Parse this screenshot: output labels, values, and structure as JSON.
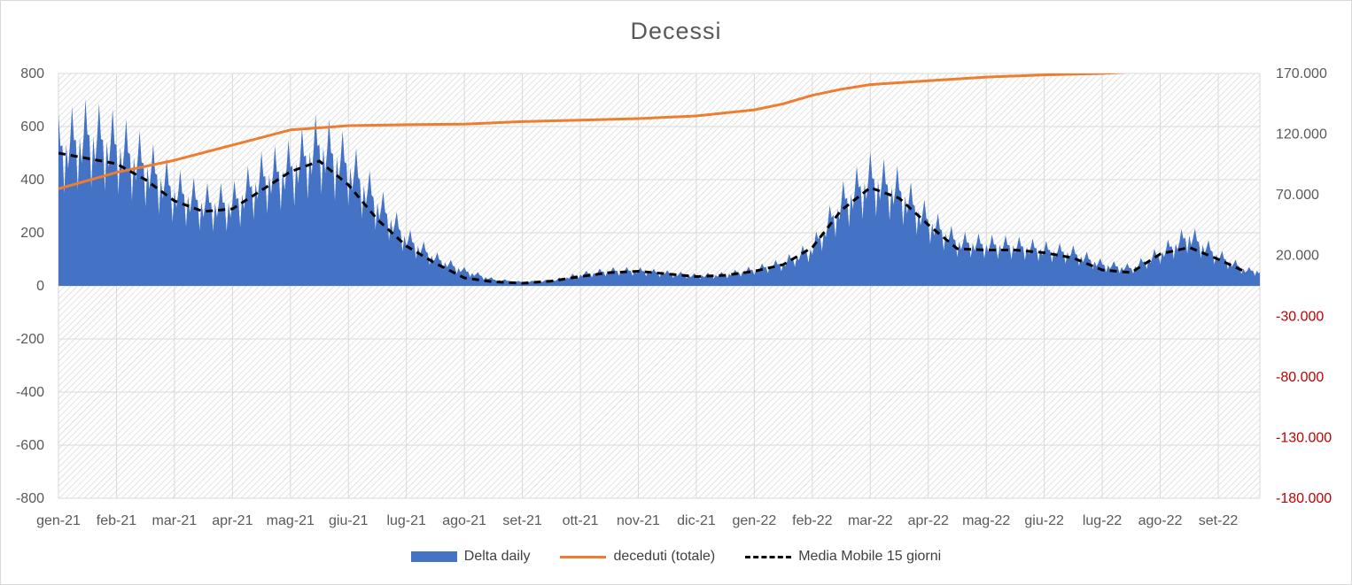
{
  "chart_data": {
    "type": "area",
    "title": "Decessi",
    "categories": [
      "gen-21",
      "feb-21",
      "mar-21",
      "apr-21",
      "mag-21",
      "giu-21",
      "lug-21",
      "ago-21",
      "set-21",
      "ott-21",
      "nov-21",
      "dic-21",
      "gen-22",
      "feb-22",
      "mar-22",
      "apr-22",
      "mag-22",
      "giu-22",
      "lug-22",
      "ago-22",
      "set-22"
    ],
    "ylim": [
      -800,
      800
    ],
    "y_ticks": [
      800,
      600,
      400,
      200,
      0,
      -200,
      -400,
      -600,
      -800
    ],
    "y2lim": [
      -180000,
      170000
    ],
    "y2_tick_labels": [
      "170.000",
      "120.000",
      "70.000",
      "20.000",
      "-30.000",
      "-80.000",
      "-130.000",
      "-180.000"
    ],
    "y2_tick_values": [
      170000,
      120000,
      70000,
      20000,
      -30000,
      -80000,
      -130000,
      -180000
    ],
    "grid": true,
    "legend_position": "bottom",
    "series": [
      {
        "name": "Delta daily",
        "type": "area",
        "axis": "left",
        "color": "#4472c4",
        "x": [
          0,
          0.5,
          1,
          1.5,
          2,
          2.5,
          3,
          3.5,
          4,
          4.5,
          5,
          5.5,
          6,
          6.5,
          7,
          7.5,
          8,
          8.5,
          9,
          9.5,
          10,
          10.5,
          11,
          11.5,
          12,
          12.5,
          13,
          13.5,
          14,
          14.5,
          15,
          15.5,
          16,
          16.5,
          17,
          17.5,
          18,
          18.5,
          19,
          19.5,
          20,
          20.5
        ],
        "values": [
          550,
          600,
          560,
          480,
          380,
          330,
          330,
          430,
          470,
          560,
          480,
          330,
          190,
          110,
          60,
          25,
          15,
          20,
          45,
          60,
          60,
          50,
          40,
          45,
          65,
          90,
          150,
          330,
          430,
          380,
          260,
          175,
          165,
          160,
          145,
          130,
          85,
          70,
          130,
          200,
          120,
          60
        ]
      },
      {
        "name": "deceduti (totale)",
        "type": "line",
        "axis": "right",
        "color": "#ed7d31",
        "x": [
          0,
          1,
          2,
          3,
          4,
          5,
          6,
          7,
          8,
          9,
          10,
          11,
          12,
          12.5,
          13,
          13.5,
          14,
          15,
          16,
          17,
          18,
          19,
          19.5,
          20,
          20.5
        ],
        "values": [
          75000,
          88500,
          98500,
          111000,
          123500,
          127000,
          127800,
          128300,
          130300,
          131600,
          132800,
          135000,
          140000,
          145000,
          152000,
          157000,
          160800,
          164000,
          167000,
          168800,
          170000,
          172500,
          174500,
          175800,
          176500
        ]
      },
      {
        "name": "Media Mobile 15 giorni",
        "type": "line",
        "axis": "left",
        "color": "#000000",
        "dash": true,
        "x": [
          0,
          0.5,
          1,
          1.5,
          2,
          2.5,
          3,
          3.5,
          4,
          4.5,
          5,
          5.5,
          6,
          6.5,
          7,
          7.5,
          8,
          8.5,
          9,
          9.5,
          10,
          10.5,
          11,
          11.5,
          12,
          12.5,
          13,
          13.5,
          14,
          14.5,
          15,
          15.5,
          16,
          16.5,
          17,
          17.5,
          18,
          18.5,
          19,
          19.5,
          20,
          20.5
        ],
        "values": [
          500,
          480,
          460,
          400,
          320,
          280,
          290,
          360,
          430,
          470,
          380,
          250,
          150,
          85,
          30,
          15,
          10,
          18,
          35,
          50,
          55,
          45,
          35,
          40,
          55,
          80,
          145,
          285,
          370,
          330,
          230,
          140,
          135,
          135,
          125,
          105,
          60,
          50,
          120,
          145,
          100,
          50
        ]
      }
    ]
  }
}
